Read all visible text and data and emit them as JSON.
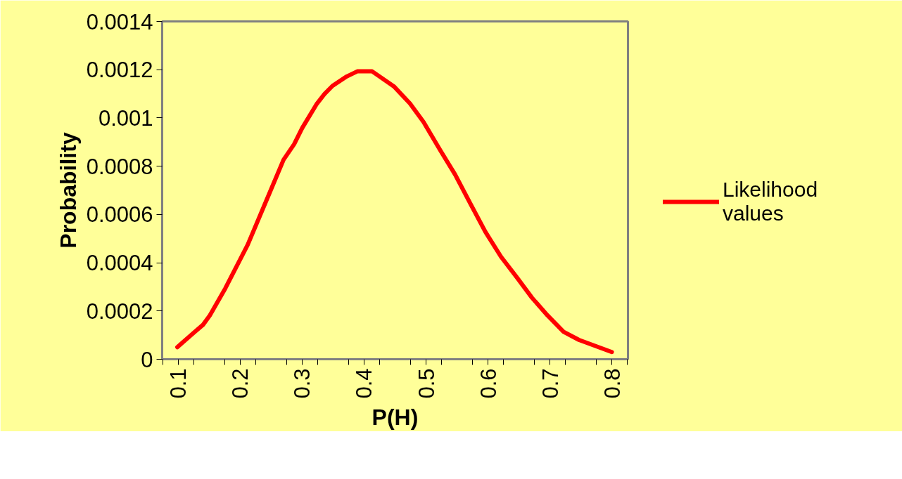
{
  "chart_data": {
    "type": "line",
    "xlabel": "P(H)",
    "ylabel": "Probability",
    "x": [
      0.0985,
      0.125,
      0.14,
      0.151,
      0.176,
      0.212,
      0.247,
      0.27,
      0.287,
      0.3,
      0.323,
      0.336,
      0.349,
      0.372,
      0.389,
      0.413,
      0.448,
      0.474,
      0.496,
      0.523,
      0.547,
      0.572,
      0.596,
      0.621,
      0.647,
      0.671,
      0.696,
      0.722,
      0.747,
      0.8
    ],
    "series": [
      {
        "name": "Likelihood values",
        "color": "#ff0000",
        "values": [
          5e-05,
          0.00011,
          0.000143,
          0.000182,
          0.000294,
          0.000474,
          0.000687,
          0.000827,
          0.000891,
          0.000958,
          0.001056,
          0.001099,
          0.001133,
          0.001172,
          0.001193,
          0.001193,
          0.001131,
          0.00106,
          0.000983,
          0.000866,
          0.000765,
          0.000643,
          0.000527,
          0.000425,
          0.000338,
          0.000255,
          0.000182,
          0.000114,
          8e-05,
          3e-05
        ]
      }
    ],
    "xlim": [
      0.074,
      0.826
    ],
    "ylim": [
      0,
      0.0014
    ],
    "xticks": [
      {
        "value": 0.075,
        "label": null
      },
      0.1,
      {
        "value": 0.125,
        "label": null
      },
      {
        "value": 0.175,
        "label": null
      },
      0.2,
      {
        "value": 0.225,
        "label": null
      },
      {
        "value": 0.275,
        "label": null
      },
      0.3,
      {
        "value": 0.325,
        "label": null
      },
      {
        "value": 0.375,
        "label": null
      },
      0.4,
      {
        "value": 0.425,
        "label": null
      },
      {
        "value": 0.475,
        "label": null
      },
      0.5,
      {
        "value": 0.525,
        "label": null
      },
      {
        "value": 0.575,
        "label": null
      },
      0.6,
      {
        "value": 0.625,
        "label": null
      },
      {
        "value": 0.675,
        "label": null
      },
      0.7,
      {
        "value": 0.725,
        "label": null
      },
      {
        "value": 0.775,
        "label": null
      },
      0.8,
      {
        "value": 0.825,
        "label": null
      }
    ],
    "yticks": [
      0,
      0.0002,
      0.0004,
      0.0006,
      0.0008,
      0.001,
      0.0012,
      0.0014
    ],
    "grid": false,
    "legend": "right",
    "marker": "none",
    "line_style": "solid"
  }
}
